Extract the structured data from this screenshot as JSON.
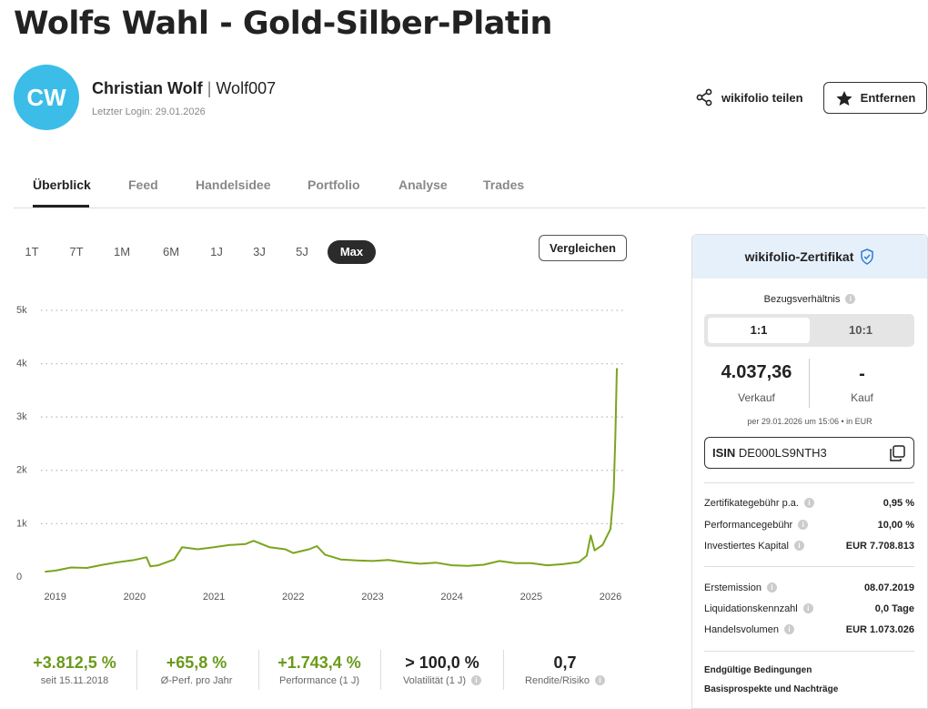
{
  "header": {
    "title": "Wolfs Wahl - Gold-Silber-Platin",
    "avatar": "CW",
    "name": "Christian Wolf",
    "separator": "|",
    "username": "Wolf007",
    "last_login": "Letzter Login: 29.01.2026",
    "share": "wikifolio teilen",
    "remove": "Entfernen"
  },
  "tabs": [
    "Überblick",
    "Feed",
    "Handelsidee",
    "Portfolio",
    "Analyse",
    "Trades"
  ],
  "ranges": [
    "1T",
    "7T",
    "1M",
    "6M",
    "1J",
    "3J",
    "5J",
    "Max"
  ],
  "compare": "Vergleichen",
  "chart_data": {
    "type": "line",
    "color": "#7aa51c",
    "grid": true,
    "x": [
      2018.87,
      2019.0,
      2019.2,
      2019.4,
      2019.6,
      2019.8,
      2020.0,
      2020.15,
      2020.2,
      2020.3,
      2020.5,
      2020.6,
      2020.8,
      2021.0,
      2021.2,
      2021.4,
      2021.5,
      2021.7,
      2021.9,
      2022.0,
      2022.2,
      2022.3,
      2022.4,
      2022.6,
      2022.8,
      2023.0,
      2023.2,
      2023.4,
      2023.6,
      2023.8,
      2024.0,
      2024.2,
      2024.4,
      2024.6,
      2024.8,
      2025.0,
      2025.2,
      2025.4,
      2025.6,
      2025.7,
      2025.75,
      2025.8,
      2025.9,
      2026.0,
      2026.04,
      2026.06,
      2026.08,
      2026.09
    ],
    "values": [
      100,
      120,
      180,
      170,
      230,
      280,
      320,
      370,
      200,
      220,
      330,
      560,
      520,
      560,
      600,
      620,
      680,
      560,
      520,
      450,
      520,
      580,
      420,
      330,
      310,
      300,
      320,
      280,
      250,
      270,
      220,
      210,
      230,
      300,
      260,
      260,
      220,
      240,
      280,
      400,
      780,
      500,
      600,
      900,
      1600,
      2600,
      3900,
      3912
    ],
    "xlim": [
      2018.82,
      2026.16
    ],
    "xticks": [
      2019,
      2020,
      2021,
      2022,
      2023,
      2024,
      2025,
      2026
    ],
    "ylim": [
      0,
      5000
    ],
    "yticks": [
      0,
      {
        "value": 1000,
        "label": "1k"
      },
      {
        "value": 2000,
        "label": "2k"
      },
      {
        "value": 3000,
        "label": "3k"
      },
      {
        "value": 4000,
        "label": "4k"
      },
      {
        "value": 5000,
        "label": "5k"
      }
    ]
  },
  "stats": [
    {
      "value": "+3.812,5 %",
      "label": "seit 15.11.2018"
    },
    {
      "value": "+65,8 %",
      "label": "Ø-Perf. pro Jahr"
    },
    {
      "value": "+1.743,4 %",
      "label": "Performance (1 J)"
    },
    {
      "value": "> 100,0 %",
      "label": "Volatilität (1 J)"
    },
    {
      "value": "0,7",
      "label": "Rendite/Risiko"
    }
  ],
  "panel": {
    "title": "wikifolio-Zertifikat",
    "ratio_label": "Bezugsverhältnis",
    "ratio_options": [
      "1:1",
      "10:1"
    ],
    "sell": {
      "value": "4.037,36",
      "label": "Verkauf"
    },
    "buy": {
      "value": "-",
      "label": "Kauf"
    },
    "timestamp": "per 29.01.2026 um 15:06 • in EUR",
    "isin_label": "ISIN",
    "isin": "DE000LS9NTH3",
    "fees": [
      [
        "Zertifikategebühr p.a.",
        "0,95 %"
      ],
      [
        "Performancegebühr",
        "10,00 %"
      ],
      [
        "Investiertes Kapital",
        "EUR 7.708.813"
      ]
    ],
    "info": [
      [
        "Erstemission",
        "08.07.2019"
      ],
      [
        "Liquidationskennzahl",
        "0,0 Tage"
      ],
      [
        "Handelsvolumen",
        "EUR 1.073.026"
      ]
    ],
    "links": [
      "Endgültige Bedingungen",
      "Basisprospekte und Nachträge"
    ]
  }
}
